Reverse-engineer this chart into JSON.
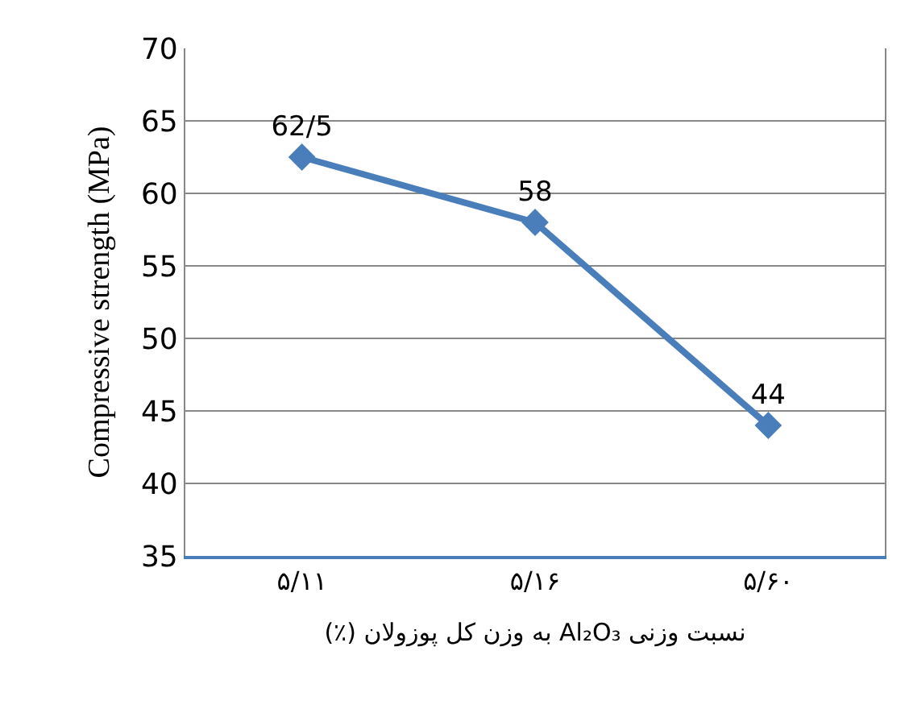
{
  "chart_data": {
    "type": "line",
    "xlabel": "نسبت وزنی Al₂O₃ به وزن کل پوزولان (٪)",
    "ylabel": "Compressive strength (MPa)",
    "categories": [
      "۵/۱۱",
      "۵/۱۶",
      "۵/۶۰"
    ],
    "series": [
      {
        "color": "#4a7ebb",
        "values": [
          62.5,
          58,
          44
        ],
        "value_labels": [
          "62/5",
          "58",
          "44"
        ]
      }
    ],
    "ylim": [
      35,
      70
    ],
    "yticks": [
      35,
      40,
      45,
      50,
      55,
      60,
      65,
      70
    ],
    "grid": "y",
    "marker": "diamond",
    "line_style": "solid"
  }
}
